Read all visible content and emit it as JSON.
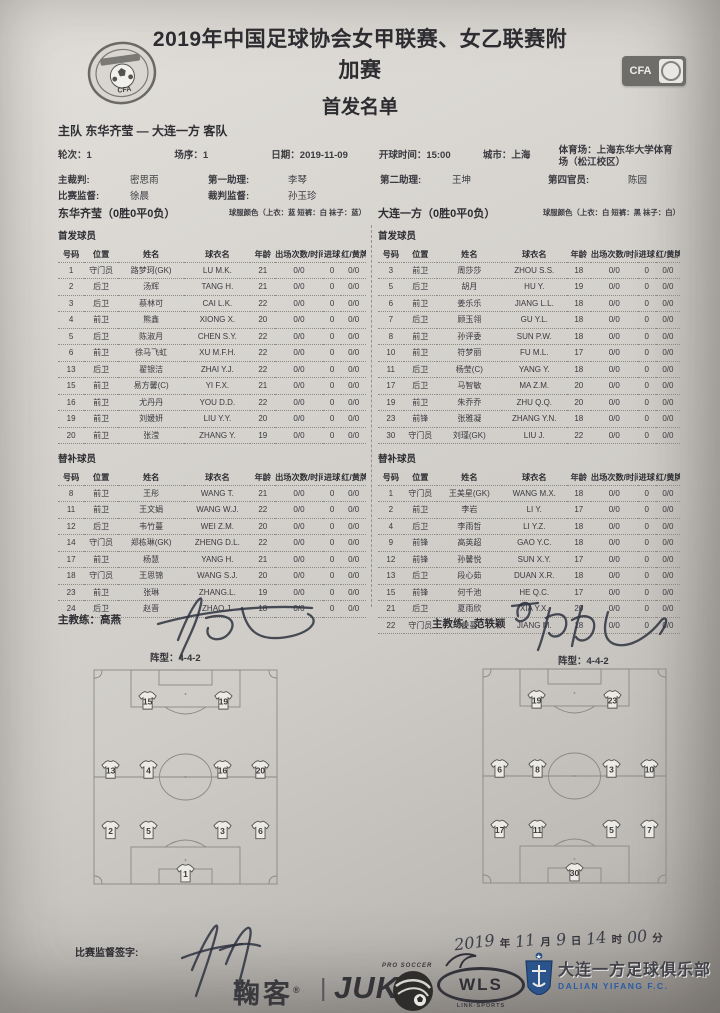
{
  "header": {
    "title_line1": "2019年中国足球协会女甲联赛、女乙联赛附",
    "title_line2": "加赛",
    "subtitle": "首发名单",
    "cfa_badge_text": "CFA"
  },
  "match": {
    "teams_line": "主队 东华齐莹 — 大连一方 客队",
    "round": "轮次：1",
    "match_no": "场序：1",
    "date": "日期：2019-11-09",
    "kickoff": "开球时间：15:00",
    "city": "城市：上海",
    "stadium": "体育场：上海东华大学体育场（松江校区）",
    "officials": [
      {
        "label": "主裁判:",
        "value": "密思雨"
      },
      {
        "label": "第一助理:",
        "value": "李琴"
      },
      {
        "label": "第二助理:",
        "value": "王坤"
      },
      {
        "label": "第四官员:",
        "value": "陈园"
      }
    ],
    "supervisors": [
      {
        "label": "比赛监督:",
        "value": "徐晨"
      },
      {
        "label": "裁判监督:",
        "value": "孙玉珍"
      }
    ]
  },
  "columns": [
    "号码",
    "位置",
    "姓名",
    "球衣名",
    "年龄",
    "出场次数/时间",
    "进球",
    "红/黄牌"
  ],
  "home": {
    "name": "东华齐莹",
    "record": "（0胜0平0负）",
    "kit": "球服颜色（上衣：蓝 短裤：白 袜子：蓝）",
    "starters_label": "首发球员",
    "subs_label": "替补球员",
    "coach_label": "主教练：",
    "coach": "高燕",
    "formation": "阵型：4-4-2",
    "starters": [
      [
        "1",
        "守门员",
        "路梦珂(GK)",
        "LU M.K.",
        "21",
        "0/0",
        "0",
        "0/0"
      ],
      [
        "2",
        "后卫",
        "汤辉",
        "TANG H.",
        "21",
        "0/0",
        "0",
        "0/0"
      ],
      [
        "3",
        "后卫",
        "蔡林可",
        "CAI L.K.",
        "22",
        "0/0",
        "0",
        "0/0"
      ],
      [
        "4",
        "前卫",
        "熊鑫",
        "XIONG X.",
        "20",
        "0/0",
        "0",
        "0/0"
      ],
      [
        "5",
        "后卫",
        "陈淑月",
        "CHEN S.Y.",
        "22",
        "0/0",
        "0",
        "0/0"
      ],
      [
        "6",
        "前卫",
        "徐马飞虹",
        "XU M.F.H.",
        "22",
        "0/0",
        "0",
        "0/0"
      ],
      [
        "13",
        "后卫",
        "翟银洁",
        "ZHAI Y.J.",
        "22",
        "0/0",
        "0",
        "0/0"
      ],
      [
        "15",
        "前卫",
        "易方馨(C)",
        "YI F.X.",
        "21",
        "0/0",
        "0",
        "0/0"
      ],
      [
        "16",
        "前卫",
        "尤丹丹",
        "YOU D.D.",
        "22",
        "0/0",
        "0",
        "0/0"
      ],
      [
        "19",
        "前卫",
        "刘媛妍",
        "LIU Y.Y.",
        "20",
        "0/0",
        "0",
        "0/0"
      ],
      [
        "20",
        "前卫",
        "张滢",
        "ZHANG Y.",
        "19",
        "0/0",
        "0",
        "0/0"
      ]
    ],
    "subs": [
      [
        "8",
        "前卫",
        "王彤",
        "WANG T.",
        "21",
        "0/0",
        "0",
        "0/0"
      ],
      [
        "11",
        "前卫",
        "王文娟",
        "WANG W.J.",
        "22",
        "0/0",
        "0",
        "0/0"
      ],
      [
        "12",
        "后卫",
        "韦竹蔓",
        "WEI Z.M.",
        "20",
        "0/0",
        "0",
        "0/0"
      ],
      [
        "14",
        "守门员",
        "郑栋琳(GK)",
        "ZHENG D.L.",
        "22",
        "0/0",
        "0",
        "0/0"
      ],
      [
        "17",
        "前卫",
        "杨慧",
        "YANG H.",
        "21",
        "0/0",
        "0",
        "0/0"
      ],
      [
        "18",
        "守门员",
        "王思锦",
        "WANG S.J.",
        "20",
        "0/0",
        "0",
        "0/0"
      ],
      [
        "23",
        "前卫",
        "张琳",
        "ZHANG.L.",
        "19",
        "0/0",
        "0",
        "0/0"
      ],
      [
        "24",
        "后卫",
        "赵晋",
        "ZHAO.J.",
        "18",
        "0/0",
        "0",
        "0/0"
      ]
    ],
    "pitch_rows": [
      [
        "15",
        "19"
      ],
      [
        "13",
        "4",
        "16",
        "20"
      ],
      [
        "2",
        "5",
        "3",
        "6"
      ],
      [
        "1"
      ]
    ]
  },
  "away": {
    "name": "大连一方",
    "record": "（0胜0平0负）",
    "kit": "球服颜色（上衣：白 短裤：黑 袜子：白）",
    "starters_label": "首发球员",
    "subs_label": "替补球员",
    "coach_label": "主教练：",
    "coach": "范轶颖",
    "formation": "阵型：4-4-2",
    "starters": [
      [
        "3",
        "前卫",
        "周莎莎",
        "ZHOU S.S.",
        "18",
        "0/0",
        "0",
        "0/0"
      ],
      [
        "5",
        "后卫",
        "胡月",
        "HU Y.",
        "19",
        "0/0",
        "0",
        "0/0"
      ],
      [
        "6",
        "前卫",
        "姜乐乐",
        "JIANG L.L.",
        "18",
        "0/0",
        "0",
        "0/0"
      ],
      [
        "7",
        "后卫",
        "顾玉翎",
        "GU Y.L.",
        "18",
        "0/0",
        "0",
        "0/0"
      ],
      [
        "8",
        "前卫",
        "孙评委",
        "SUN P.W.",
        "18",
        "0/0",
        "0",
        "0/0"
      ],
      [
        "10",
        "前卫",
        "符梦丽",
        "FU M.L.",
        "17",
        "0/0",
        "0",
        "0/0"
      ],
      [
        "11",
        "后卫",
        "杨莹(C)",
        "YANG Y.",
        "18",
        "0/0",
        "0",
        "0/0"
      ],
      [
        "17",
        "后卫",
        "马智敏",
        "MA Z.M.",
        "20",
        "0/0",
        "0",
        "0/0"
      ],
      [
        "19",
        "前卫",
        "朱乔乔",
        "ZHU Q.Q.",
        "20",
        "0/0",
        "0",
        "0/0"
      ],
      [
        "23",
        "前锋",
        "张雅凝",
        "ZHANG Y.N.",
        "18",
        "0/0",
        "0",
        "0/0"
      ],
      [
        "30",
        "守门员",
        "刘瑾(GK)",
        "LIU J.",
        "22",
        "0/0",
        "0",
        "0/0"
      ]
    ],
    "subs": [
      [
        "1",
        "守门员",
        "王美星(GK)",
        "WANG M.X.",
        "18",
        "0/0",
        "0",
        "0/0"
      ],
      [
        "2",
        "前卫",
        "李岩",
        "LI Y.",
        "17",
        "0/0",
        "0",
        "0/0"
      ],
      [
        "4",
        "后卫",
        "李雨哲",
        "LI Y.Z.",
        "18",
        "0/0",
        "0",
        "0/0"
      ],
      [
        "9",
        "前锋",
        "高英超",
        "GAO Y.C.",
        "18",
        "0/0",
        "0",
        "0/0"
      ],
      [
        "12",
        "前锋",
        "孙馨悦",
        "SUN X.Y.",
        "17",
        "0/0",
        "0",
        "0/0"
      ],
      [
        "13",
        "后卫",
        "段心茹",
        "DUAN X.R.",
        "18",
        "0/0",
        "0",
        "0/0"
      ],
      [
        "15",
        "前锋",
        "何千池",
        "HE Q.C.",
        "17",
        "0/0",
        "0",
        "0/0"
      ],
      [
        "21",
        "后卫",
        "夏雨欣",
        "XIA Y.X.",
        "20",
        "0/0",
        "0",
        "0/0"
      ],
      [
        "22",
        "守门员",
        "姜蔓",
        "JIANG M.",
        "18",
        "0/0",
        "0",
        "0/0"
      ]
    ],
    "pitch_rows": [
      [
        "19",
        "23"
      ],
      [
        "6",
        "8",
        "3",
        "10"
      ],
      [
        "17",
        "11",
        "5",
        "7"
      ],
      [
        "30"
      ]
    ]
  },
  "footer": {
    "sign_label": "比赛监督签字:",
    "date": {
      "year": "2019",
      "y_unit": "年",
      "month": "11",
      "m_unit": "月",
      "day": "9",
      "d_unit": "日",
      "hour": "14",
      "h_unit": "时",
      "minute": "00",
      "min_unit": "分"
    }
  },
  "sponsors": {
    "juke": "鞠客",
    "reg": "®",
    "divider": "|",
    "juk": "JUK",
    "juk_tag": "PRO SOCCER",
    "wls": "WLS",
    "wls_tag": "LINK·SPORTS",
    "club_cn": "大连一方足球俱乐部",
    "club_en": "DALIAN YIFANG F.C."
  },
  "colors": {
    "accent_blue": "#2a5ca8",
    "badge_dark": "#6f6d69",
    "paper": "#d3d0cb"
  }
}
